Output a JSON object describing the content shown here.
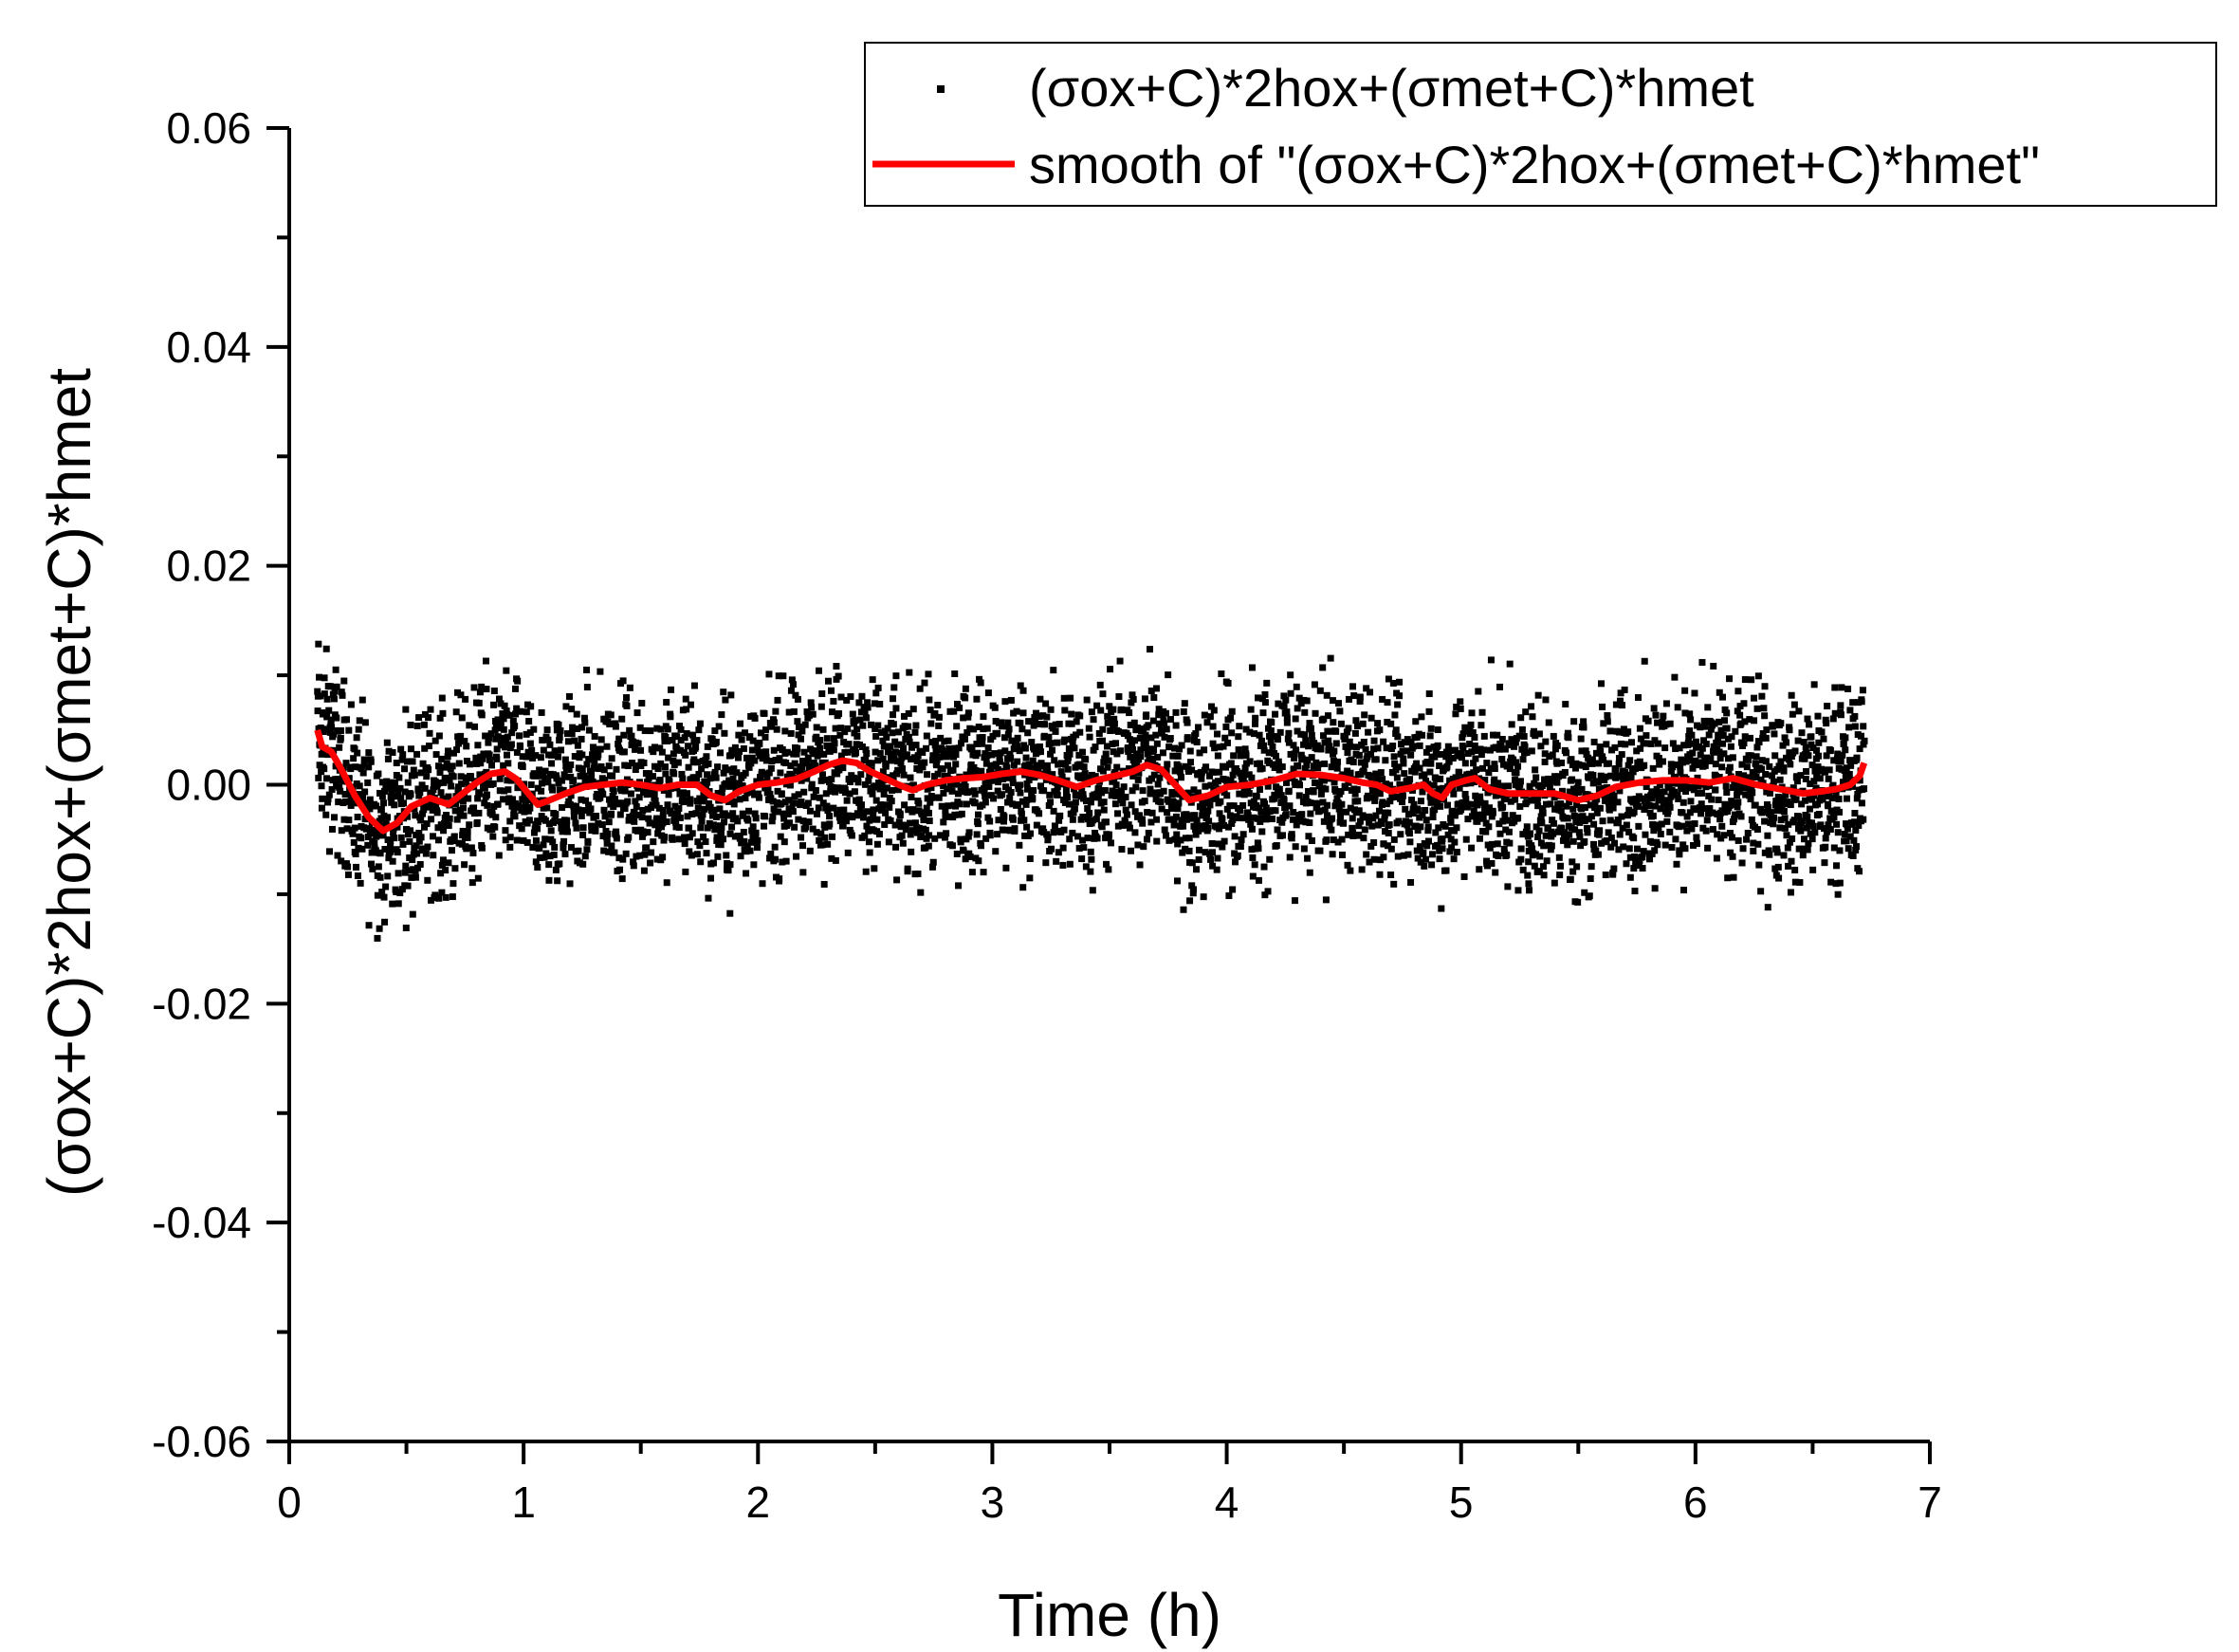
{
  "chart_data": {
    "type": "scatter",
    "xlabel": "Time (h)",
    "ylabel": "(σox+C)*2hox+(σmet+C)*hmet",
    "xlim": [
      0,
      7
    ],
    "ylim": [
      -0.06,
      0.06
    ],
    "xticks": [
      0,
      1,
      2,
      3,
      4,
      5,
      6,
      7
    ],
    "xtick_labels": [
      "0",
      "1",
      "2",
      "3",
      "4",
      "5",
      "6",
      "7"
    ],
    "yticks": [
      -0.06,
      -0.04,
      -0.02,
      0.0,
      0.02,
      0.04,
      0.06
    ],
    "ytick_labels": [
      "-0.06",
      "-0.04",
      "-0.02",
      "0.00",
      "0.02",
      "0.04",
      "0.06"
    ],
    "grid": false,
    "legend_position": "top-right",
    "series": [
      {
        "name": "(σox+C)*2hox+(σmet+C)*hmet",
        "kind": "scatter",
        "color": "#000000",
        "x_range": [
          0.12,
          6.72
        ],
        "n_points": 5000,
        "spread": 0.009
      },
      {
        "name": "smooth of \"(σox+C)*2hox+(σmet+C)*hmet\"",
        "kind": "line",
        "color": "#ff0000",
        "x": [
          0.12,
          0.14,
          0.18,
          0.22,
          0.28,
          0.34,
          0.4,
          0.46,
          0.52,
          0.6,
          0.68,
          0.74,
          0.8,
          0.86,
          0.92,
          0.97,
          1.02,
          1.06,
          1.1,
          1.18,
          1.26,
          1.34,
          1.42,
          1.5,
          1.58,
          1.66,
          1.74,
          1.8,
          1.86,
          1.92,
          2.0,
          2.08,
          2.16,
          2.24,
          2.3,
          2.36,
          2.42,
          2.48,
          2.54,
          2.6,
          2.66,
          2.72,
          2.8,
          2.88,
          2.96,
          3.04,
          3.12,
          3.2,
          3.28,
          3.36,
          3.44,
          3.52,
          3.6,
          3.66,
          3.72,
          3.78,
          3.84,
          3.92,
          4.0,
          4.1,
          4.2,
          4.3,
          4.4,
          4.5,
          4.58,
          4.64,
          4.7,
          4.78,
          4.84,
          4.88,
          4.92,
          4.96,
          5.02,
          5.06,
          5.12,
          5.2,
          5.3,
          5.4,
          5.5,
          5.58,
          5.66,
          5.76,
          5.86,
          5.96,
          6.06,
          6.16,
          6.26,
          6.36,
          6.46,
          6.54,
          6.6,
          6.66,
          6.7,
          6.72
        ],
        "y": [
          0.005,
          0.0035,
          0.003,
          0.0015,
          -0.001,
          -0.003,
          -0.0042,
          -0.0035,
          -0.002,
          -0.0012,
          -0.0018,
          -0.0008,
          0.0002,
          0.001,
          0.0012,
          0.0005,
          -0.0008,
          -0.0018,
          -0.0015,
          -0.0008,
          -0.0002,
          0.0,
          0.0002,
          0.0,
          -0.0003,
          0.0,
          0.0,
          -0.001,
          -0.0014,
          -0.0006,
          0.0,
          0.0002,
          0.0005,
          0.0012,
          0.0018,
          0.0022,
          0.002,
          0.0012,
          0.0006,
          0.0,
          -0.0005,
          0.0,
          0.0004,
          0.0006,
          0.0007,
          0.001,
          0.0012,
          0.0009,
          0.0004,
          -0.0002,
          0.0004,
          0.0008,
          0.0012,
          0.0018,
          0.0014,
          0.0,
          -0.0014,
          -0.001,
          -0.0002,
          0.0,
          0.0004,
          0.001,
          0.0009,
          0.0006,
          0.0002,
          0.0,
          -0.0006,
          -0.0003,
          0.0,
          -0.0008,
          -0.0012,
          0.0,
          0.0004,
          0.0006,
          -0.0004,
          -0.0008,
          -0.0008,
          -0.0008,
          -0.0014,
          -0.001,
          -0.0002,
          0.0002,
          0.0004,
          0.0004,
          0.0002,
          0.0006,
          0.0,
          -0.0004,
          -0.0008,
          -0.0006,
          -0.0004,
          0.0,
          0.0008,
          0.002
        ]
      }
    ]
  }
}
